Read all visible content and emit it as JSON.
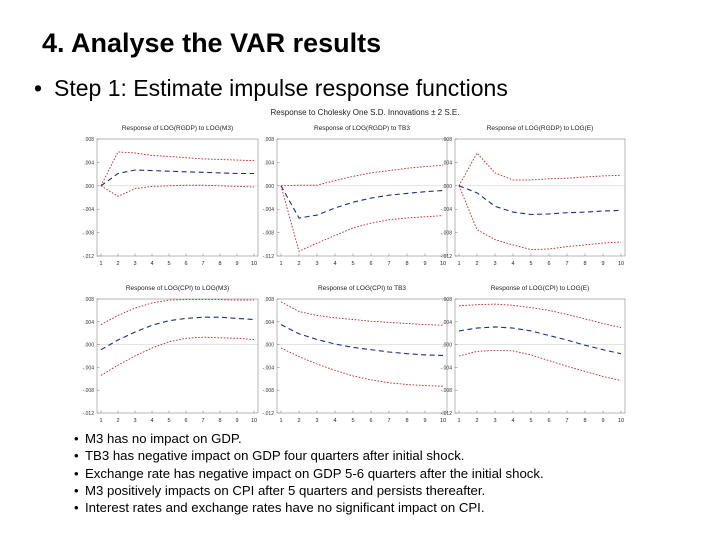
{
  "slide": {
    "title": "4.  Analyse the VAR results",
    "step_bullet": "•",
    "step_text": "Step 1: Estimate impulse response functions"
  },
  "figure": {
    "title": "Response to Cholesky One S.D. Innovations ± 2 S.E."
  },
  "chart_data": [
    {
      "type": "line",
      "title": "Response of LOG(RGDP) to LOG(M3)",
      "x": [
        1,
        2,
        3,
        4,
        5,
        6,
        7,
        8,
        9,
        10
      ],
      "xticks": [
        "1",
        "2",
        "3",
        "4",
        "5",
        "6",
        "7",
        "8",
        "9",
        "10"
      ],
      "ylim": [
        -0.012,
        0.008
      ],
      "yticks": [
        ".008",
        ".004",
        ".000",
        "-.004",
        "-.008",
        "-.012"
      ],
      "series": [
        {
          "role": "upper",
          "color": "#cc2222",
          "dash": "dotted",
          "values": [
            0.0,
            0.0058,
            0.0056,
            0.0052,
            0.005,
            0.0048,
            0.0046,
            0.0045,
            0.0044,
            0.0043
          ]
        },
        {
          "role": "response",
          "color": "#1a2f8a",
          "dash": "dashed",
          "values": [
            0.0,
            0.0021,
            0.0027,
            0.0026,
            0.0025,
            0.0024,
            0.0023,
            0.0022,
            0.0021,
            0.0021
          ]
        },
        {
          "role": "lower",
          "color": "#cc2222",
          "dash": "dotted",
          "values": [
            0.0,
            -0.0018,
            -0.0005,
            -0.0001,
            0.0,
            0.0001,
            0.0001,
            0.0,
            -0.0001,
            -0.0002
          ]
        }
      ]
    },
    {
      "type": "line",
      "title": "Response of LOG(RGDP) to TB3",
      "x": [
        1,
        2,
        3,
        4,
        5,
        6,
        7,
        8,
        9,
        10
      ],
      "xticks": [
        "1",
        "2",
        "3",
        "4",
        "5",
        "6",
        "7",
        "8",
        "9",
        "10"
      ],
      "ylim": [
        -0.012,
        0.008
      ],
      "yticks": [
        ".008",
        ".004",
        ".000",
        "-.004",
        "-.008",
        "-.012"
      ],
      "series": [
        {
          "role": "upper",
          "color": "#cc2222",
          "dash": "dotted",
          "values": [
            0.0,
            0.0001,
            0.0001,
            0.0009,
            0.0016,
            0.0022,
            0.0026,
            0.003,
            0.0033,
            0.0035
          ]
        },
        {
          "role": "response",
          "color": "#1a2f8a",
          "dash": "dashed",
          "values": [
            0.0,
            -0.0055,
            -0.005,
            -0.0038,
            -0.0028,
            -0.0021,
            -0.0016,
            -0.0013,
            -0.001,
            -0.0008
          ]
        },
        {
          "role": "lower",
          "color": "#cc2222",
          "dash": "dotted",
          "values": [
            0.0,
            -0.0112,
            -0.0098,
            -0.0085,
            -0.0072,
            -0.0064,
            -0.0058,
            -0.0055,
            -0.0053,
            -0.0051
          ]
        }
      ]
    },
    {
      "type": "line",
      "title": "Response of LOG(RGDP) to LOG(E)",
      "x": [
        1,
        2,
        3,
        4,
        5,
        6,
        7,
        8,
        9,
        10
      ],
      "xticks": [
        "1",
        "2",
        "3",
        "4",
        "5",
        "6",
        "7",
        "8",
        "9",
        "10"
      ],
      "ylim": [
        -0.012,
        0.008
      ],
      "yticks": [
        ".008",
        ".004",
        ".000",
        "-.004",
        "-.008",
        "-.012"
      ],
      "series": [
        {
          "role": "upper",
          "color": "#cc2222",
          "dash": "dotted",
          "values": [
            0.0,
            0.0056,
            0.0022,
            0.001,
            0.001,
            0.0012,
            0.0013,
            0.0015,
            0.0017,
            0.0018
          ]
        },
        {
          "role": "response",
          "color": "#1a2f8a",
          "dash": "dashed",
          "values": [
            0.0,
            -0.0012,
            -0.0035,
            -0.0045,
            -0.0049,
            -0.0048,
            -0.0046,
            -0.0045,
            -0.0043,
            -0.0042
          ]
        },
        {
          "role": "lower",
          "color": "#cc2222",
          "dash": "dotted",
          "values": [
            0.0,
            -0.0075,
            -0.0092,
            -0.0101,
            -0.0109,
            -0.0108,
            -0.0104,
            -0.0101,
            -0.0098,
            -0.0096
          ]
        }
      ]
    },
    {
      "type": "line",
      "title": "Response of LOG(CPI) to LOG(M3)",
      "x": [
        1,
        2,
        3,
        4,
        5,
        6,
        7,
        8,
        9,
        10
      ],
      "xticks": [
        "1",
        "2",
        "3",
        "4",
        "5",
        "6",
        "7",
        "8",
        "9",
        "10"
      ],
      "ylim": [
        -0.012,
        0.008
      ],
      "yticks": [
        ".008",
        ".004",
        ".000",
        "-.004",
        "-.008",
        "-.012"
      ],
      "series": [
        {
          "role": "upper",
          "color": "#cc2222",
          "dash": "dotted",
          "values": [
            0.0035,
            0.0051,
            0.0064,
            0.0073,
            0.0078,
            0.0079,
            0.0079,
            0.0079,
            0.0078,
            0.0078
          ]
        },
        {
          "role": "response",
          "color": "#1a2f8a",
          "dash": "dashed",
          "values": [
            -0.0009,
            0.0008,
            0.0022,
            0.0034,
            0.0042,
            0.0046,
            0.0048,
            0.0048,
            0.0046,
            0.0044
          ]
        },
        {
          "role": "lower",
          "color": "#cc2222",
          "dash": "dotted",
          "values": [
            -0.0054,
            -0.0036,
            -0.002,
            -0.0006,
            0.0005,
            0.0011,
            0.0013,
            0.0012,
            0.0011,
            0.0009
          ]
        }
      ]
    },
    {
      "type": "line",
      "title": "Response of LOG(CPI) to TB3",
      "x": [
        1,
        2,
        3,
        4,
        5,
        6,
        7,
        8,
        9,
        10
      ],
      "xticks": [
        "1",
        "2",
        "3",
        "4",
        "5",
        "6",
        "7",
        "8",
        "9",
        "10"
      ],
      "ylim": [
        -0.012,
        0.008
      ],
      "yticks": [
        ".008",
        ".004",
        ".000",
        "-.004",
        "-.008",
        "-.012"
      ],
      "series": [
        {
          "role": "upper",
          "color": "#cc2222",
          "dash": "dotted",
          "values": [
            0.0075,
            0.0058,
            0.0051,
            0.0047,
            0.0044,
            0.0041,
            0.0039,
            0.0037,
            0.0035,
            0.0034
          ]
        },
        {
          "role": "response",
          "color": "#1a2f8a",
          "dash": "dashed",
          "values": [
            0.0035,
            0.0019,
            0.0009,
            0.0001,
            -0.0005,
            -0.0009,
            -0.0013,
            -0.0016,
            -0.0018,
            -0.0019
          ]
        },
        {
          "role": "lower",
          "color": "#cc2222",
          "dash": "dotted",
          "values": [
            -0.0006,
            -0.0021,
            -0.0034,
            -0.0045,
            -0.0055,
            -0.0062,
            -0.0067,
            -0.007,
            -0.0072,
            -0.0073
          ]
        }
      ]
    },
    {
      "type": "line",
      "title": "Response of LOG(CPI) to LOG(E)",
      "x": [
        1,
        2,
        3,
        4,
        5,
        6,
        7,
        8,
        9,
        10
      ],
      "xticks": [
        "1",
        "2",
        "3",
        "4",
        "5",
        "6",
        "7",
        "8",
        "9",
        "10"
      ],
      "ylim": [
        -0.012,
        0.008
      ],
      "yticks": [
        ".008",
        ".004",
        ".000",
        "-.004",
        "-.008",
        "-.012"
      ],
      "series": [
        {
          "role": "upper",
          "color": "#cc2222",
          "dash": "dotted",
          "values": [
            0.0068,
            0.007,
            0.0071,
            0.0069,
            0.0065,
            0.006,
            0.0053,
            0.0045,
            0.0037,
            0.003
          ]
        },
        {
          "role": "response",
          "color": "#1a2f8a",
          "dash": "dashed",
          "values": [
            0.0024,
            0.0029,
            0.0031,
            0.0029,
            0.0024,
            0.0016,
            0.0008,
            -0.0001,
            -0.0009,
            -0.0016
          ]
        },
        {
          "role": "lower",
          "color": "#cc2222",
          "dash": "dotted",
          "values": [
            -0.002,
            -0.0012,
            -0.001,
            -0.0011,
            -0.0018,
            -0.0028,
            -0.0038,
            -0.0047,
            -0.0056,
            -0.0063
          ]
        }
      ]
    }
  ],
  "bullets": [
    "M3 has no impact on GDP.",
    "TB3 has negative impact on GDP four quarters after initial shock.",
    "Exchange rate has negative impact on GDP 5-6 quarters after the initial shock.",
    "M3 positively impacts on CPI after 5 quarters and persists thereafter.",
    "Interest rates and exchange rates have no significant impact on CPI."
  ]
}
